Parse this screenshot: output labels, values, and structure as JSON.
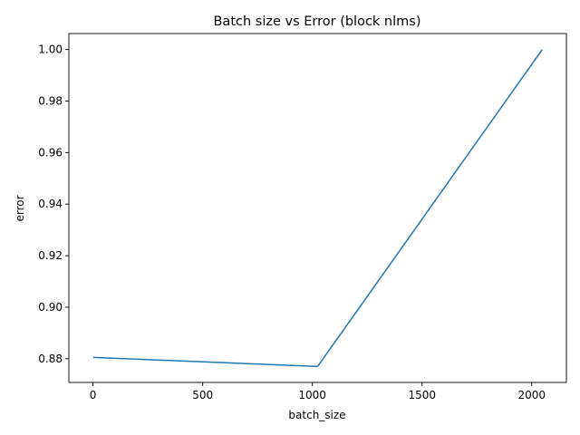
{
  "chart_data": {
    "type": "line",
    "title": "Batch size vs Error (block nlms)",
    "xlabel": "batch_size",
    "ylabel": "error",
    "xlim": [
      -110,
      2158
    ],
    "ylim": [
      0.8708,
      1.0062
    ],
    "x_ticks": [
      0,
      500,
      1000,
      1500,
      2000
    ],
    "x_tick_labels": [
      "0",
      "500",
      "1000",
      "1500",
      "2000"
    ],
    "y_ticks": [
      0.88,
      0.9,
      0.92,
      0.94,
      0.96,
      0.98,
      1.0
    ],
    "y_tick_labels": [
      "0.88",
      "0.90",
      "0.92",
      "0.94",
      "0.96",
      "0.98",
      "1.00"
    ],
    "grid": false,
    "series": [
      {
        "color": "#1f77b4",
        "x": [
          1,
          1024,
          2048
        ],
        "y": [
          0.8805,
          0.877,
          1.0
        ]
      }
    ]
  }
}
